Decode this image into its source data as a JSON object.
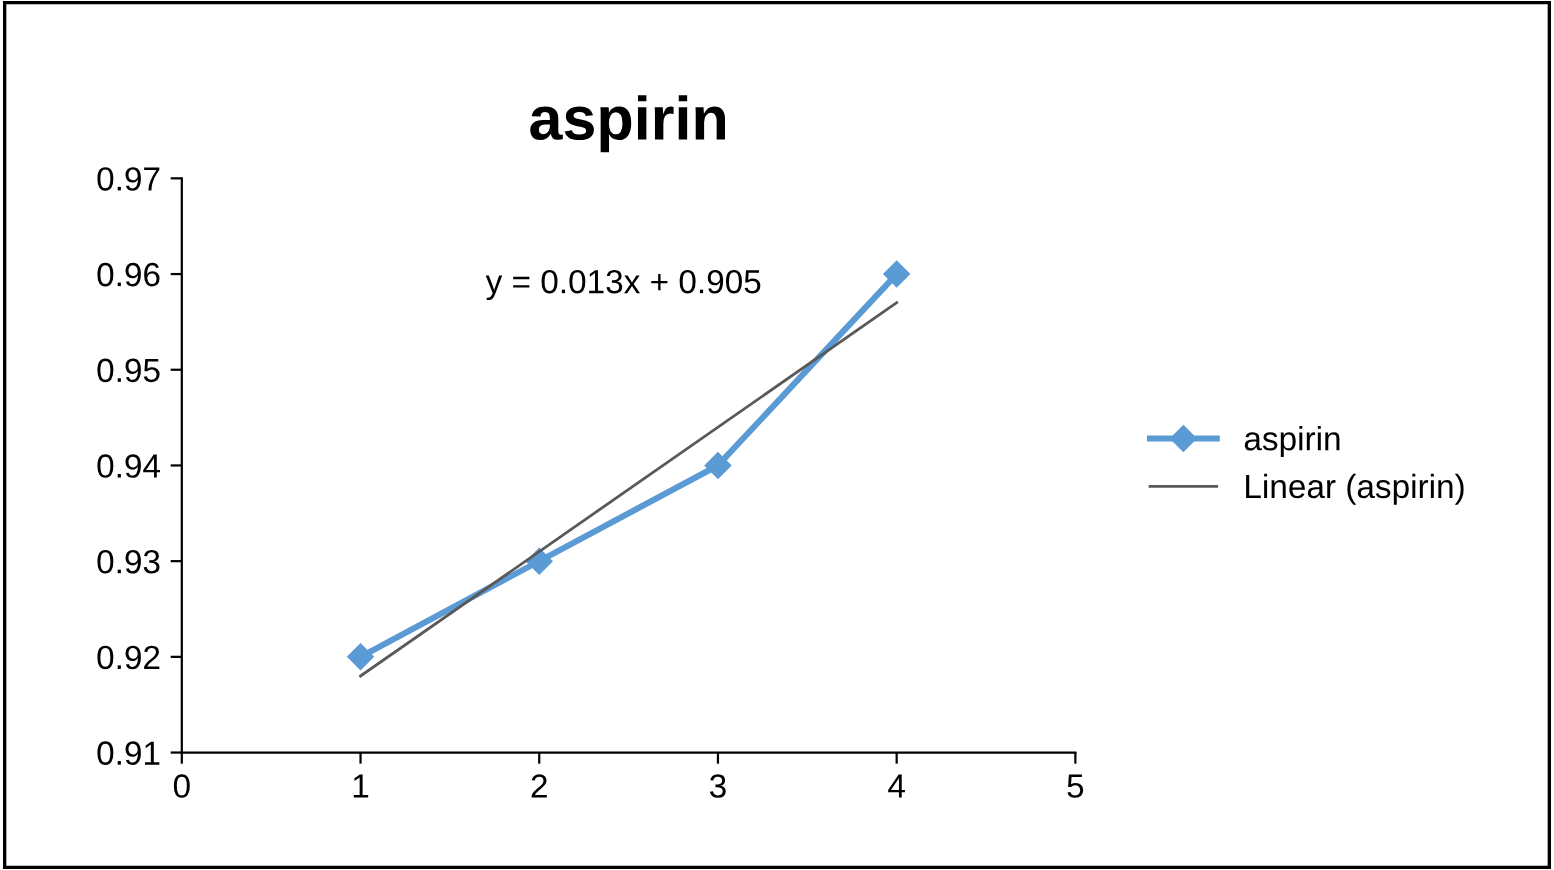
{
  "chart_data": {
    "type": "line",
    "title": "aspirin",
    "x": [
      1,
      2,
      3,
      4
    ],
    "series": [
      {
        "name": "aspirin",
        "color": "#5b9bd5",
        "values": [
          0.92,
          0.93,
          0.94,
          0.96
        ],
        "marker": "diamond"
      },
      {
        "name": "Linear (aspirin)",
        "color": "#595959",
        "x": [
          1,
          4
        ],
        "values": [
          0.918,
          0.957
        ],
        "marker": "none"
      }
    ],
    "xlim": [
      0,
      5
    ],
    "xticks": [
      0,
      1,
      2,
      3,
      4,
      5
    ],
    "ylim": [
      0.91,
      0.97
    ],
    "yticks": [
      0.91,
      0.92,
      0.93,
      0.94,
      0.95,
      0.96,
      0.97
    ],
    "annotations": [
      "y = 0.013x + 0.905"
    ],
    "grid": false,
    "legend": "right",
    "line_style": "solid"
  }
}
